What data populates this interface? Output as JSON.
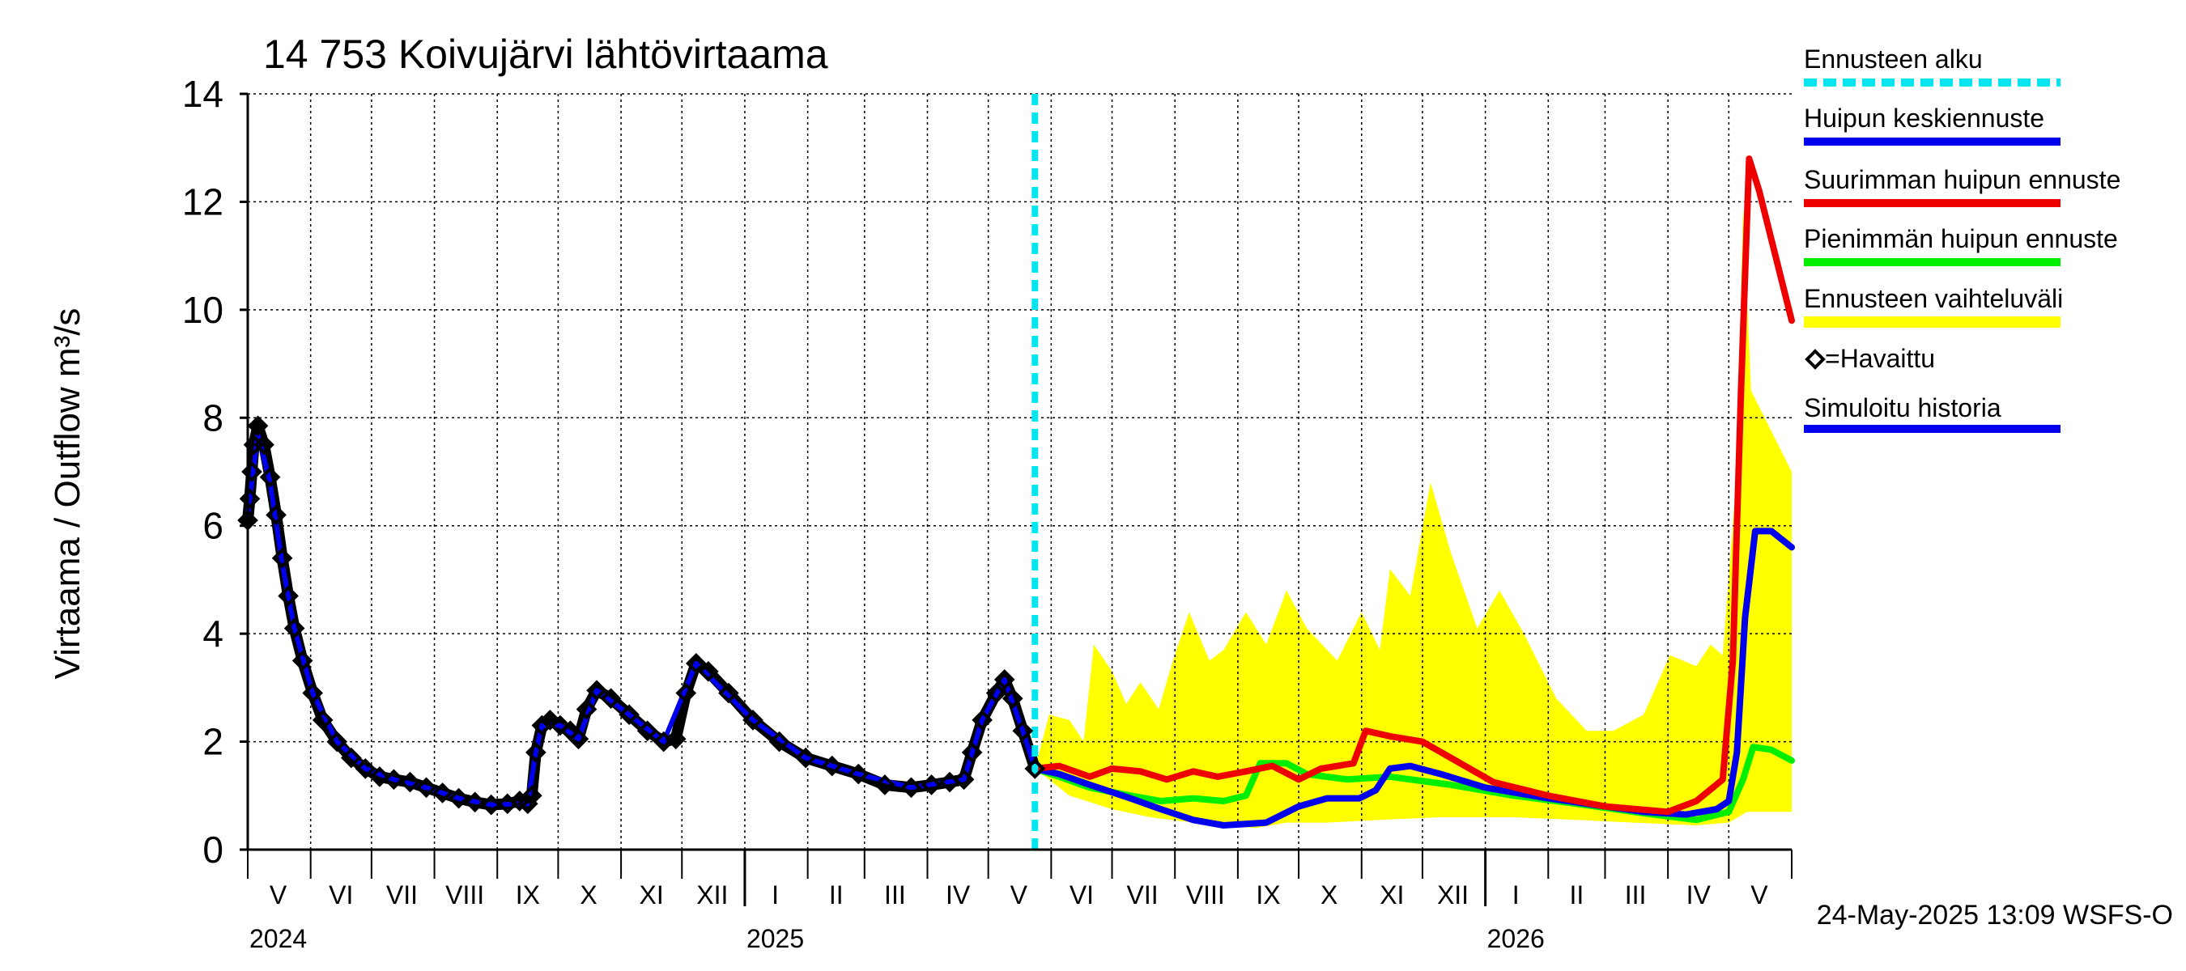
{
  "chart_data": {
    "type": "line",
    "title": "14 753 Koivujärvi lähtövirtaama",
    "ylabel": "Virtaama / Outflow    m³/s",
    "ylim": [
      0,
      14
    ],
    "yticks": [
      0,
      2,
      4,
      6,
      8,
      10,
      12,
      14
    ],
    "xlim": [
      "2024-05-01",
      "2026-06-01"
    ],
    "grid": true,
    "legend_position": "right",
    "timestamp": "24-May-2025 13:09 WSFS-O",
    "forecast_start": "2025-05-24",
    "month_labels": [
      {
        "label": "V",
        "date": "2024-05-16"
      },
      {
        "label": "VI",
        "date": "2024-06-16"
      },
      {
        "label": "VII",
        "date": "2024-07-16"
      },
      {
        "label": "VIII",
        "date": "2024-08-16"
      },
      {
        "label": "IX",
        "date": "2024-09-16"
      },
      {
        "label": "X",
        "date": "2024-10-16"
      },
      {
        "label": "XI",
        "date": "2024-11-16"
      },
      {
        "label": "XII",
        "date": "2024-12-16"
      },
      {
        "label": "I",
        "date": "2025-01-16"
      },
      {
        "label": "II",
        "date": "2025-02-15"
      },
      {
        "label": "III",
        "date": "2025-03-16"
      },
      {
        "label": "IV",
        "date": "2025-04-16"
      },
      {
        "label": "V",
        "date": "2025-05-16"
      },
      {
        "label": "VI",
        "date": "2025-06-16"
      },
      {
        "label": "VII",
        "date": "2025-07-16"
      },
      {
        "label": "VIII",
        "date": "2025-08-16"
      },
      {
        "label": "IX",
        "date": "2025-09-16"
      },
      {
        "label": "X",
        "date": "2025-10-16"
      },
      {
        "label": "XI",
        "date": "2025-11-16"
      },
      {
        "label": "XII",
        "date": "2025-12-16"
      },
      {
        "label": "I",
        "date": "2026-01-16"
      },
      {
        "label": "II",
        "date": "2026-02-15"
      },
      {
        "label": "III",
        "date": "2026-03-16"
      },
      {
        "label": "IV",
        "date": "2026-04-16"
      },
      {
        "label": "V",
        "date": "2026-05-16"
      }
    ],
    "year_labels": [
      {
        "label": "2024",
        "date": "2024-05-01"
      },
      {
        "label": "2025",
        "date": "2025-01-01"
      },
      {
        "label": "2026",
        "date": "2026-01-01"
      }
    ],
    "legend": [
      {
        "label": "Ennusteen alku",
        "color": "#00e5ee",
        "style": "dashed"
      },
      {
        "label": "Huipun keskiennuste",
        "color": "#0000ee",
        "style": "solid"
      },
      {
        "label": "Suurimman huipun ennuste",
        "color": "#ee0000",
        "style": "solid"
      },
      {
        "label": "Pienimmän huipun ennuste",
        "color": "#00ee00",
        "style": "solid"
      },
      {
        "label": "Ennusteen vaihteluväli",
        "color": "#ffff00",
        "style": "band"
      },
      {
        "label": "=Havaittu",
        "color": "#000000",
        "style": "marker"
      },
      {
        "label": "Simuloitu historia",
        "color": "#0000ee",
        "style": "solid"
      }
    ],
    "series": [
      {
        "name": "Havaittu",
        "color": "#000000",
        "points": [
          [
            "2024-05-01",
            6.1
          ],
          [
            "2024-05-02",
            6.5
          ],
          [
            "2024-05-03",
            7.0
          ],
          [
            "2024-05-04",
            7.5
          ],
          [
            "2024-05-06",
            7.85
          ],
          [
            "2024-05-09",
            7.5
          ],
          [
            "2024-05-12",
            6.9
          ],
          [
            "2024-05-15",
            6.2
          ],
          [
            "2024-05-18",
            5.4
          ],
          [
            "2024-05-21",
            4.7
          ],
          [
            "2024-05-24",
            4.1
          ],
          [
            "2024-05-28",
            3.5
          ],
          [
            "2024-06-02",
            2.9
          ],
          [
            "2024-06-07",
            2.4
          ],
          [
            "2024-06-14",
            2.0
          ],
          [
            "2024-06-21",
            1.7
          ],
          [
            "2024-06-28",
            1.5
          ],
          [
            "2024-07-05",
            1.35
          ],
          [
            "2024-07-12",
            1.3
          ],
          [
            "2024-07-20",
            1.25
          ],
          [
            "2024-07-28",
            1.15
          ],
          [
            "2024-08-05",
            1.05
          ],
          [
            "2024-08-13",
            0.95
          ],
          [
            "2024-08-21",
            0.88
          ],
          [
            "2024-08-29",
            0.83
          ],
          [
            "2024-09-06",
            0.85
          ],
          [
            "2024-09-12",
            0.9
          ],
          [
            "2024-09-16",
            0.85
          ],
          [
            "2024-09-18",
            1.0
          ],
          [
            "2024-09-20",
            1.8
          ],
          [
            "2024-09-23",
            2.3
          ],
          [
            "2024-09-27",
            2.4
          ],
          [
            "2024-10-02",
            2.3
          ],
          [
            "2024-10-07",
            2.2
          ],
          [
            "2024-10-11",
            2.05
          ],
          [
            "2024-10-15",
            2.6
          ],
          [
            "2024-10-20",
            2.95
          ],
          [
            "2024-10-27",
            2.8
          ],
          [
            "2024-11-05",
            2.5
          ],
          [
            "2024-11-14",
            2.2
          ],
          [
            "2024-11-22",
            2.0
          ],
          [
            "2024-11-28",
            2.05
          ],
          [
            "2024-12-03",
            2.9
          ],
          [
            "2024-12-08",
            3.45
          ],
          [
            "2024-12-14",
            3.3
          ],
          [
            "2024-12-24",
            2.9
          ],
          [
            "2025-01-05",
            2.4
          ],
          [
            "2025-01-18",
            2.0
          ],
          [
            "2025-01-31",
            1.7
          ],
          [
            "2025-02-13",
            1.55
          ],
          [
            "2025-02-26",
            1.4
          ],
          [
            "2025-03-11",
            1.2
          ],
          [
            "2025-03-24",
            1.15
          ],
          [
            "2025-04-03",
            1.2
          ],
          [
            "2025-04-12",
            1.25
          ],
          [
            "2025-04-19",
            1.3
          ],
          [
            "2025-04-23",
            1.8
          ],
          [
            "2025-04-28",
            2.4
          ],
          [
            "2025-05-05",
            2.9
          ],
          [
            "2025-05-09",
            3.15
          ],
          [
            "2025-05-13",
            2.8
          ],
          [
            "2025-05-18",
            2.2
          ],
          [
            "2025-05-24",
            1.5
          ]
        ]
      },
      {
        "name": "Simuloitu historia",
        "color": "#0000ee",
        "points": [
          [
            "2024-05-01",
            6.2
          ],
          [
            "2024-05-06",
            7.7
          ],
          [
            "2024-05-12",
            6.8
          ],
          [
            "2024-05-18",
            5.3
          ],
          [
            "2024-05-24",
            4.1
          ],
          [
            "2024-06-02",
            2.9
          ],
          [
            "2024-06-14",
            2.0
          ],
          [
            "2024-06-28",
            1.5
          ],
          [
            "2024-07-12",
            1.3
          ],
          [
            "2024-07-28",
            1.15
          ],
          [
            "2024-08-13",
            0.95
          ],
          [
            "2024-08-29",
            0.83
          ],
          [
            "2024-09-16",
            0.85
          ],
          [
            "2024-09-20",
            1.8
          ],
          [
            "2024-09-23",
            2.3
          ],
          [
            "2024-10-02",
            2.3
          ],
          [
            "2024-10-11",
            2.05
          ],
          [
            "2024-10-20",
            2.95
          ],
          [
            "2024-11-05",
            2.5
          ],
          [
            "2024-11-22",
            2.0
          ],
          [
            "2024-12-08",
            3.45
          ],
          [
            "2025-01-05",
            2.4
          ],
          [
            "2025-01-31",
            1.7
          ],
          [
            "2025-02-26",
            1.4
          ],
          [
            "2025-03-24",
            1.15
          ],
          [
            "2025-04-19",
            1.3
          ],
          [
            "2025-04-28",
            2.4
          ],
          [
            "2025-05-09",
            3.15
          ],
          [
            "2025-05-18",
            2.2
          ],
          [
            "2025-05-24",
            1.5
          ]
        ]
      },
      {
        "name": "Huipun keskiennuste",
        "color": "#0000ee",
        "points": [
          [
            "2025-05-24",
            1.5
          ],
          [
            "2025-06-05",
            1.4
          ],
          [
            "2025-06-20",
            1.2
          ],
          [
            "2025-07-10",
            0.95
          ],
          [
            "2025-07-25",
            0.75
          ],
          [
            "2025-08-10",
            0.55
          ],
          [
            "2025-08-25",
            0.45
          ],
          [
            "2025-09-15",
            0.5
          ],
          [
            "2025-10-01",
            0.8
          ],
          [
            "2025-10-15",
            0.95
          ],
          [
            "2025-10-31",
            0.95
          ],
          [
            "2025-11-08",
            1.1
          ],
          [
            "2025-11-15",
            1.5
          ],
          [
            "2025-11-25",
            1.55
          ],
          [
            "2025-12-10",
            1.4
          ],
          [
            "2026-01-01",
            1.15
          ],
          [
            "2026-02-01",
            0.95
          ],
          [
            "2026-03-01",
            0.8
          ],
          [
            "2026-03-20",
            0.7
          ],
          [
            "2026-04-10",
            0.65
          ],
          [
            "2026-04-25",
            0.75
          ],
          [
            "2026-05-01",
            0.9
          ],
          [
            "2026-05-05",
            1.8
          ],
          [
            "2026-05-09",
            4.3
          ],
          [
            "2026-05-14",
            5.9
          ],
          [
            "2026-05-22",
            5.9
          ],
          [
            "2026-06-01",
            5.6
          ]
        ]
      },
      {
        "name": "Suurimman huipun ennuste",
        "color": "#ee0000",
        "points": [
          [
            "2025-05-24",
            1.5
          ],
          [
            "2025-06-05",
            1.55
          ],
          [
            "2025-06-20",
            1.35
          ],
          [
            "2025-07-01",
            1.5
          ],
          [
            "2025-07-15",
            1.45
          ],
          [
            "2025-07-28",
            1.3
          ],
          [
            "2025-08-10",
            1.45
          ],
          [
            "2025-08-22",
            1.35
          ],
          [
            "2025-09-05",
            1.45
          ],
          [
            "2025-09-18",
            1.55
          ],
          [
            "2025-10-01",
            1.3
          ],
          [
            "2025-10-12",
            1.5
          ],
          [
            "2025-10-28",
            1.6
          ],
          [
            "2025-11-03",
            2.2
          ],
          [
            "2025-11-15",
            2.1
          ],
          [
            "2025-12-01",
            2.0
          ],
          [
            "2025-12-15",
            1.7
          ],
          [
            "2026-01-05",
            1.25
          ],
          [
            "2026-02-01",
            1.0
          ],
          [
            "2026-03-01",
            0.8
          ],
          [
            "2026-04-01",
            0.7
          ],
          [
            "2026-04-15",
            0.9
          ],
          [
            "2026-04-28",
            1.3
          ],
          [
            "2026-05-03",
            3.5
          ],
          [
            "2026-05-07",
            8.5
          ],
          [
            "2026-05-11",
            12.8
          ],
          [
            "2026-05-16",
            12.2
          ],
          [
            "2026-06-01",
            9.8
          ]
        ]
      },
      {
        "name": "Pienimmän huipun ennuste",
        "color": "#00ee00",
        "points": [
          [
            "2025-05-24",
            1.5
          ],
          [
            "2025-06-05",
            1.35
          ],
          [
            "2025-06-20",
            1.15
          ],
          [
            "2025-07-10",
            1.0
          ],
          [
            "2025-07-25",
            0.9
          ],
          [
            "2025-08-10",
            0.95
          ],
          [
            "2025-08-25",
            0.9
          ],
          [
            "2025-09-05",
            1.0
          ],
          [
            "2025-09-12",
            1.6
          ],
          [
            "2025-09-25",
            1.6
          ],
          [
            "2025-10-05",
            1.4
          ],
          [
            "2025-10-25",
            1.3
          ],
          [
            "2025-11-15",
            1.35
          ],
          [
            "2025-12-15",
            1.2
          ],
          [
            "2026-01-15",
            1.0
          ],
          [
            "2026-02-15",
            0.85
          ],
          [
            "2026-03-15",
            0.7
          ],
          [
            "2026-04-15",
            0.55
          ],
          [
            "2026-05-01",
            0.7
          ],
          [
            "2026-05-08",
            1.3
          ],
          [
            "2026-05-13",
            1.9
          ],
          [
            "2026-05-22",
            1.85
          ],
          [
            "2026-06-01",
            1.65
          ]
        ]
      }
    ],
    "band": {
      "name": "Ennusteen vaihteluväli",
      "color": "#ffff00",
      "upper": [
        [
          "2025-05-24",
          1.5
        ],
        [
          "2025-05-31",
          2.5
        ],
        [
          "2025-06-10",
          2.4
        ],
        [
          "2025-06-17",
          2.0
        ],
        [
          "2025-06-22",
          3.8
        ],
        [
          "2025-07-01",
          3.3
        ],
        [
          "2025-07-08",
          2.7
        ],
        [
          "2025-07-15",
          3.1
        ],
        [
          "2025-07-24",
          2.6
        ],
        [
          "2025-07-31",
          3.5
        ],
        [
          "2025-08-08",
          4.4
        ],
        [
          "2025-08-18",
          3.5
        ],
        [
          "2025-08-25",
          3.7
        ],
        [
          "2025-09-05",
          4.4
        ],
        [
          "2025-09-15",
          3.8
        ],
        [
          "2025-09-25",
          4.8
        ],
        [
          "2025-10-05",
          4.1
        ],
        [
          "2025-10-20",
          3.5
        ],
        [
          "2025-11-01",
          4.4
        ],
        [
          "2025-11-10",
          3.7
        ],
        [
          "2025-11-15",
          5.2
        ],
        [
          "2025-11-25",
          4.7
        ],
        [
          "2025-12-05",
          6.8
        ],
        [
          "2025-12-15",
          5.5
        ],
        [
          "2025-12-28",
          4.1
        ],
        [
          "2026-01-08",
          4.8
        ],
        [
          "2026-01-20",
          4.0
        ],
        [
          "2026-02-05",
          2.8
        ],
        [
          "2026-02-20",
          2.2
        ],
        [
          "2026-03-05",
          2.2
        ],
        [
          "2026-03-20",
          2.5
        ],
        [
          "2026-04-02",
          3.6
        ],
        [
          "2026-04-15",
          3.4
        ],
        [
          "2026-04-22",
          3.8
        ],
        [
          "2026-04-28",
          3.6
        ],
        [
          "2026-05-05",
          7.0
        ],
        [
          "2026-05-08",
          11.9
        ],
        [
          "2026-05-12",
          8.5
        ],
        [
          "2026-06-01",
          7.0
        ]
      ],
      "lower": [
        [
          "2025-05-24",
          1.5
        ],
        [
          "2025-06-10",
          1.0
        ],
        [
          "2025-07-01",
          0.75
        ],
        [
          "2025-07-20",
          0.6
        ],
        [
          "2025-08-10",
          0.5
        ],
        [
          "2025-08-25",
          0.45
        ],
        [
          "2025-09-10",
          0.4
        ],
        [
          "2025-09-25",
          0.5
        ],
        [
          "2025-10-15",
          0.5
        ],
        [
          "2025-11-10",
          0.55
        ],
        [
          "2025-12-10",
          0.6
        ],
        [
          "2026-01-15",
          0.6
        ],
        [
          "2026-02-15",
          0.55
        ],
        [
          "2026-03-15",
          0.5
        ],
        [
          "2026-04-15",
          0.45
        ],
        [
          "2026-05-01",
          0.5
        ],
        [
          "2026-05-10",
          0.7
        ],
        [
          "2026-06-01",
          0.7
        ]
      ]
    }
  }
}
